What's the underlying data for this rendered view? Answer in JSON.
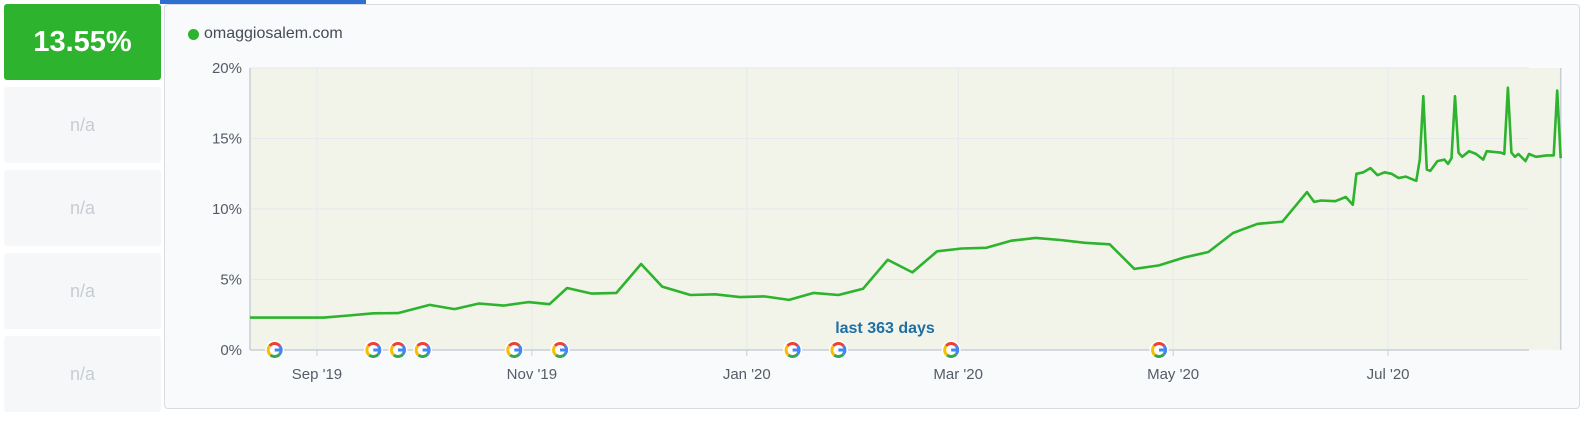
{
  "metrics": [
    {
      "value": "13.55%",
      "active": true
    },
    {
      "value": "n/a",
      "active": false
    },
    {
      "value": "n/a",
      "active": false
    },
    {
      "value": "n/a",
      "active": false
    },
    {
      "value": "n/a",
      "active": false
    }
  ],
  "legend": {
    "label": "omaggiosalem.com",
    "color": "#2db32d"
  },
  "chart_data": {
    "type": "area",
    "title": "",
    "xlabel": "",
    "ylabel": "",
    "x_range": [
      "2019-08-13",
      "2020-08-10"
    ],
    "ylim": [
      0,
      20
    ],
    "y_ticks": [
      0,
      5,
      10,
      15,
      20
    ],
    "y_tick_labels": [
      "0%",
      "5%",
      "10%",
      "15%",
      "20%"
    ],
    "x_ticks": [
      "2019-09-01",
      "2019-11-01",
      "2020-01-01",
      "2020-03-01",
      "2020-05-01",
      "2020-07-01"
    ],
    "x_tick_labels": [
      "Sep '19",
      "Nov '19",
      "Jan '20",
      "Mar '20",
      "May '20",
      "Jul '20"
    ],
    "grid": true,
    "legend_position": "top-left",
    "line_color": "#2db32d",
    "fill_color": "#f2f4ea",
    "annotation": "last 363 days",
    "google_update_dates": [
      "2019-08-20",
      "2019-09-17",
      "2019-09-24",
      "2019-10-01",
      "2019-10-27",
      "2019-11-09",
      "2020-01-14",
      "2020-01-27",
      "2020-02-28",
      "2020-04-27"
    ],
    "series": [
      {
        "name": "omaggiosalem.com",
        "points": [
          [
            "2019-08-13",
            2.3
          ],
          [
            "2019-08-27",
            2.3
          ],
          [
            "2019-09-03",
            2.3
          ],
          [
            "2019-09-10",
            2.45
          ],
          [
            "2019-09-17",
            2.6
          ],
          [
            "2019-09-24",
            2.62
          ],
          [
            "2019-10-03",
            3.2
          ],
          [
            "2019-10-10",
            2.9
          ],
          [
            "2019-10-17",
            3.3
          ],
          [
            "2019-10-24",
            3.15
          ],
          [
            "2019-10-31",
            3.4
          ],
          [
            "2019-11-06",
            3.25
          ],
          [
            "2019-11-11",
            4.4
          ],
          [
            "2019-11-18",
            4.0
          ],
          [
            "2019-11-25",
            4.05
          ],
          [
            "2019-12-02",
            6.1
          ],
          [
            "2019-12-08",
            4.5
          ],
          [
            "2019-12-16",
            3.9
          ],
          [
            "2019-12-23",
            3.95
          ],
          [
            "2019-12-30",
            3.75
          ],
          [
            "2020-01-06",
            3.8
          ],
          [
            "2020-01-13",
            3.55
          ],
          [
            "2020-01-20",
            4.05
          ],
          [
            "2020-01-27",
            3.9
          ],
          [
            "2020-02-03",
            4.35
          ],
          [
            "2020-02-10",
            6.4
          ],
          [
            "2020-02-17",
            5.5
          ],
          [
            "2020-02-24",
            7.0
          ],
          [
            "2020-03-02",
            7.2
          ],
          [
            "2020-03-09",
            7.25
          ],
          [
            "2020-03-16",
            7.75
          ],
          [
            "2020-03-23",
            7.95
          ],
          [
            "2020-03-30",
            7.8
          ],
          [
            "2020-04-06",
            7.6
          ],
          [
            "2020-04-13",
            7.5
          ],
          [
            "2020-04-20",
            5.75
          ],
          [
            "2020-04-27",
            6.0
          ],
          [
            "2020-05-04",
            6.55
          ],
          [
            "2020-05-11",
            6.95
          ],
          [
            "2020-05-18",
            8.3
          ],
          [
            "2020-05-25",
            8.95
          ],
          [
            "2020-06-01",
            9.1
          ],
          [
            "2020-06-08",
            11.2
          ],
          [
            "2020-06-10",
            10.5
          ],
          [
            "2020-06-12",
            10.6
          ],
          [
            "2020-06-16",
            10.55
          ],
          [
            "2020-06-19",
            10.85
          ],
          [
            "2020-06-21",
            10.3
          ],
          [
            "2020-06-22",
            12.5
          ],
          [
            "2020-06-24",
            12.6
          ],
          [
            "2020-06-26",
            12.9
          ],
          [
            "2020-06-28",
            12.4
          ],
          [
            "2020-06-30",
            12.6
          ],
          [
            "2020-07-02",
            12.5
          ],
          [
            "2020-07-04",
            12.2
          ],
          [
            "2020-07-06",
            12.3
          ],
          [
            "2020-07-08",
            12.1
          ],
          [
            "2020-07-09",
            12.0
          ],
          [
            "2020-07-10",
            13.5
          ],
          [
            "2020-07-11",
            18.0
          ],
          [
            "2020-07-12",
            12.8
          ],
          [
            "2020-07-13",
            12.7
          ],
          [
            "2020-07-15",
            13.4
          ],
          [
            "2020-07-17",
            13.5
          ],
          [
            "2020-07-18",
            13.2
          ],
          [
            "2020-07-19",
            13.6
          ],
          [
            "2020-07-20",
            18.0
          ],
          [
            "2020-07-21",
            14.0
          ],
          [
            "2020-07-22",
            13.7
          ],
          [
            "2020-07-24",
            14.1
          ],
          [
            "2020-07-26",
            13.9
          ],
          [
            "2020-07-28",
            13.5
          ],
          [
            "2020-07-29",
            14.1
          ],
          [
            "2020-07-31",
            14.05
          ],
          [
            "2020-08-02",
            14.0
          ],
          [
            "2020-08-03",
            13.9
          ],
          [
            "2020-08-04",
            18.6
          ],
          [
            "2020-08-05",
            14.0
          ],
          [
            "2020-08-06",
            13.7
          ],
          [
            "2020-08-07",
            13.9
          ],
          [
            "2020-08-09",
            13.4
          ],
          [
            "2020-08-10",
            13.9
          ],
          [
            "2020-08-12",
            13.7
          ],
          [
            "2020-08-15",
            13.8
          ],
          [
            "2020-08-17",
            13.8
          ],
          [
            "2020-08-18",
            18.4
          ],
          [
            "2020-08-19",
            13.6
          ]
        ]
      }
    ]
  }
}
